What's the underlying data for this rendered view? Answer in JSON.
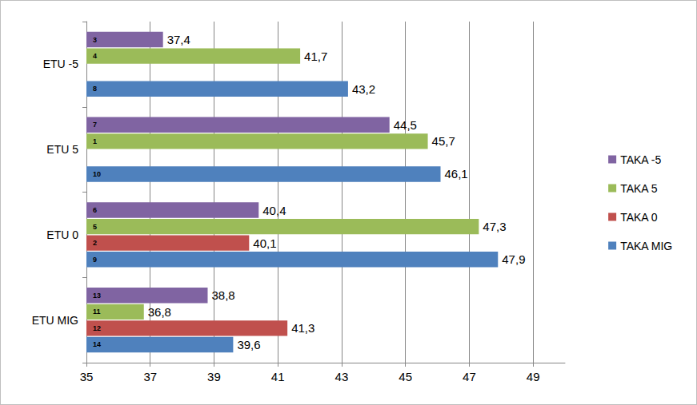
{
  "chart_data": {
    "type": "bar",
    "orientation": "horizontal",
    "categories": [
      "ETU MIG",
      "ETU 0",
      "ETU 5",
      "ETU -5"
    ],
    "series": [
      {
        "name": "TAKA -5",
        "color": "#8064a2",
        "values": [
          38.8,
          40.4,
          44.5,
          37.4
        ],
        "value_labels": [
          "38,8",
          "40,4",
          "44,5",
          "37,4"
        ],
        "ranks": [
          13,
          6,
          7,
          3
        ]
      },
      {
        "name": "TAKA 5",
        "color": "#9bbb59",
        "values": [
          36.8,
          47.3,
          45.7,
          41.7
        ],
        "value_labels": [
          "36,8",
          "47,3",
          "45,7",
          "41,7"
        ],
        "ranks": [
          11,
          5,
          1,
          4
        ]
      },
      {
        "name": "TAKA 0",
        "color": "#c0504d",
        "values": [
          41.3,
          40.1,
          null,
          null
        ],
        "value_labels": [
          "41,3",
          "40,1",
          null,
          null
        ],
        "ranks": [
          12,
          2,
          null,
          null
        ]
      },
      {
        "name": "TAKA MIG",
        "color": "#4f81bd",
        "values": [
          39.6,
          47.9,
          46.1,
          43.2
        ],
        "value_labels": [
          "39,6",
          "47,9",
          "46,1",
          "43,2"
        ],
        "ranks": [
          14,
          9,
          10,
          8
        ]
      }
    ],
    "xlim": [
      35,
      50
    ],
    "xticks": [
      35,
      37,
      39,
      41,
      43,
      45,
      47,
      49
    ],
    "grid": true,
    "legend": "right",
    "data_labels": true
  }
}
